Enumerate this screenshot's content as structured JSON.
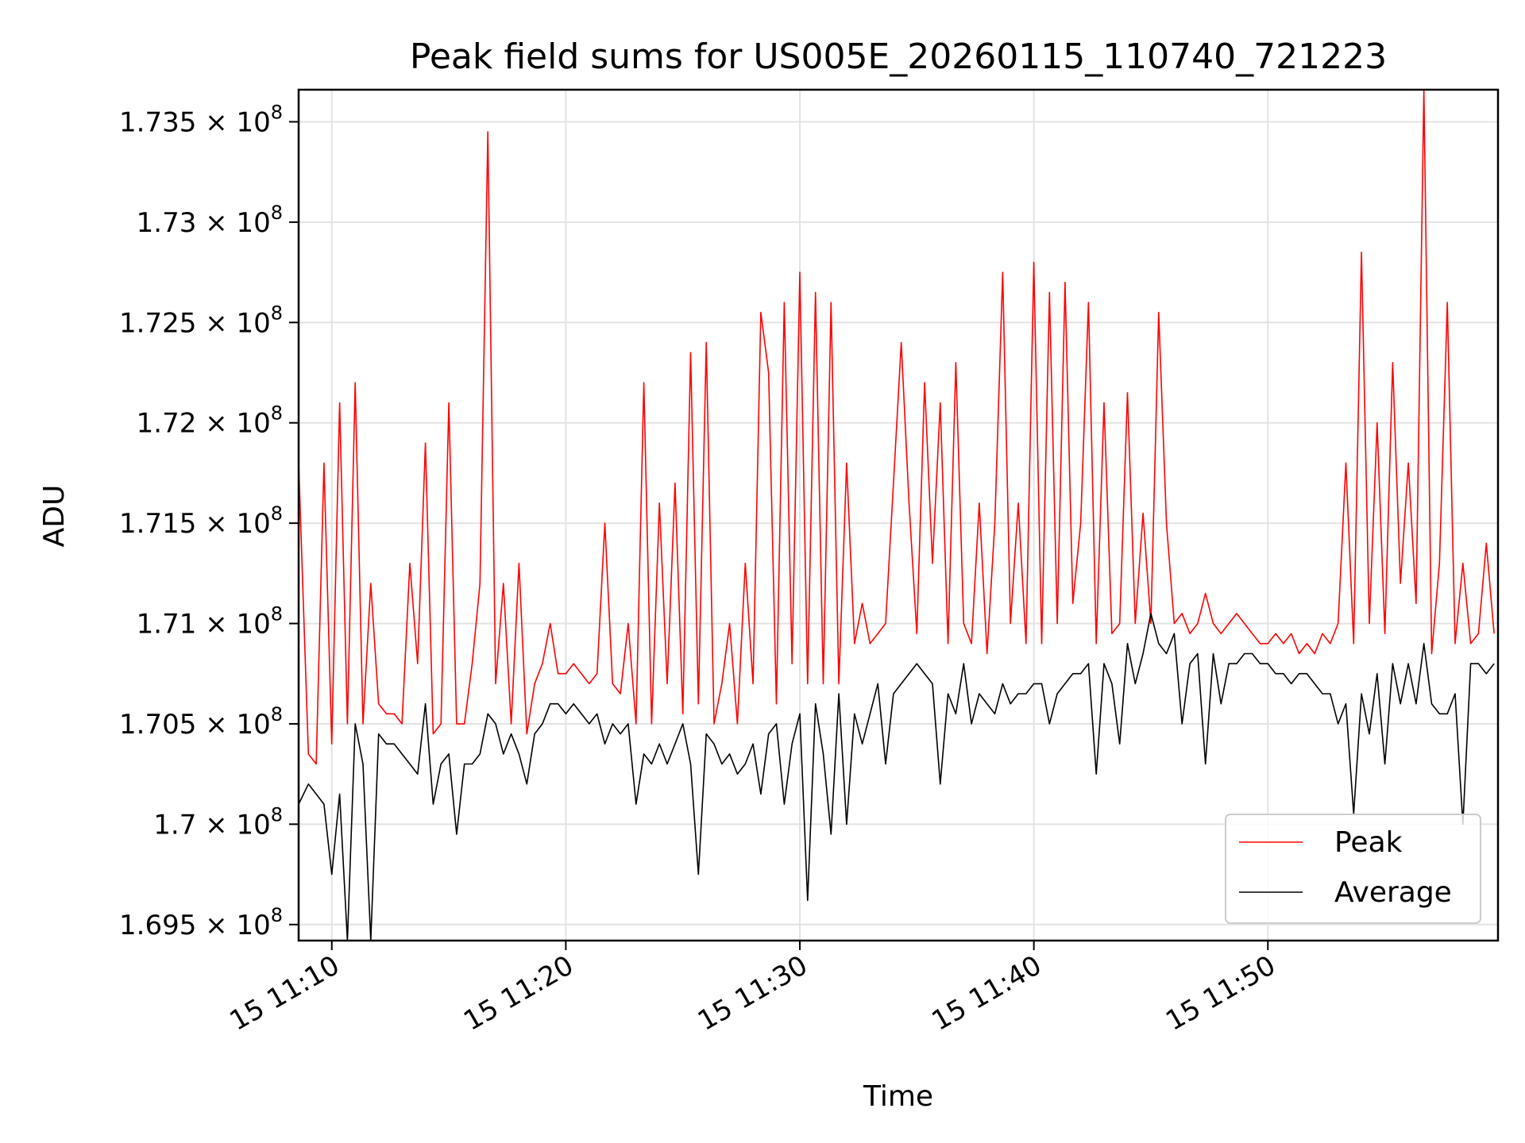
{
  "chart_data": {
    "type": "line",
    "title": "Peak field sums for US005E_20260115_110740_721223",
    "xlabel": "Time",
    "ylabel": "ADU",
    "xlim": [
      "2026-01-15 11:08:35",
      "2026-01-15 11:59:50"
    ],
    "ylim": [
      169420000,
      173660000
    ],
    "x_ticks": [
      {
        "value": "2026-01-15 11:10:00",
        "label": "15 11:10"
      },
      {
        "value": "2026-01-15 11:20:00",
        "label": "15 11:20"
      },
      {
        "value": "2026-01-15 11:30:00",
        "label": "15 11:30"
      },
      {
        "value": "2026-01-15 11:40:00",
        "label": "15 11:40"
      },
      {
        "value": "2026-01-15 11:50:00",
        "label": "15 11:50"
      }
    ],
    "y_ticks": [
      {
        "value": 169500000,
        "mantissa": "1.695",
        "suffix": "× 10",
        "exp": "8"
      },
      {
        "value": 170000000,
        "mantissa": "1.7",
        "suffix": "× 10",
        "exp": "8"
      },
      {
        "value": 170500000,
        "mantissa": "1.705",
        "suffix": "× 10",
        "exp": "8"
      },
      {
        "value": 171000000,
        "mantissa": "1.71",
        "suffix": "× 10",
        "exp": "8"
      },
      {
        "value": 171500000,
        "mantissa": "1.715",
        "suffix": "× 10",
        "exp": "8"
      },
      {
        "value": 172000000,
        "mantissa": "1.72",
        "suffix": "× 10",
        "exp": "8"
      },
      {
        "value": 172500000,
        "mantissa": "1.725",
        "suffix": "× 10",
        "exp": "8"
      },
      {
        "value": 173000000,
        "mantissa": "1.73",
        "suffix": "× 10",
        "exp": "8"
      },
      {
        "value": 173500000,
        "mantissa": "1.735",
        "suffix": "× 10",
        "exp": "8"
      }
    ],
    "grid": true,
    "legend_position": "lower-right",
    "x": [
      "2026-01-15 11:08:35",
      "2026-01-15 11:09:00",
      "2026-01-15 11:09:20",
      "2026-01-15 11:09:40",
      "2026-01-15 11:10:00",
      "2026-01-15 11:10:20",
      "2026-01-15 11:10:40",
      "2026-01-15 11:11:00",
      "2026-01-15 11:11:20",
      "2026-01-15 11:11:40",
      "2026-01-15 11:12:00",
      "2026-01-15 11:12:20",
      "2026-01-15 11:12:40",
      "2026-01-15 11:13:00",
      "2026-01-15 11:13:20",
      "2026-01-15 11:13:40",
      "2026-01-15 11:14:00",
      "2026-01-15 11:14:20",
      "2026-01-15 11:14:40",
      "2026-01-15 11:15:00",
      "2026-01-15 11:15:20",
      "2026-01-15 11:15:40",
      "2026-01-15 11:16:00",
      "2026-01-15 11:16:20",
      "2026-01-15 11:16:40",
      "2026-01-15 11:17:00",
      "2026-01-15 11:17:20",
      "2026-01-15 11:17:40",
      "2026-01-15 11:18:00",
      "2026-01-15 11:18:20",
      "2026-01-15 11:18:40",
      "2026-01-15 11:19:00",
      "2026-01-15 11:19:20",
      "2026-01-15 11:19:40",
      "2026-01-15 11:20:00",
      "2026-01-15 11:20:20",
      "2026-01-15 11:20:40",
      "2026-01-15 11:21:00",
      "2026-01-15 11:21:20",
      "2026-01-15 11:21:40",
      "2026-01-15 11:22:00",
      "2026-01-15 11:22:20",
      "2026-01-15 11:22:40",
      "2026-01-15 11:23:00",
      "2026-01-15 11:23:20",
      "2026-01-15 11:23:40",
      "2026-01-15 11:24:00",
      "2026-01-15 11:24:20",
      "2026-01-15 11:24:40",
      "2026-01-15 11:25:00",
      "2026-01-15 11:25:20",
      "2026-01-15 11:25:40",
      "2026-01-15 11:26:00",
      "2026-01-15 11:26:20",
      "2026-01-15 11:26:40",
      "2026-01-15 11:27:00",
      "2026-01-15 11:27:20",
      "2026-01-15 11:27:40",
      "2026-01-15 11:28:00",
      "2026-01-15 11:28:20",
      "2026-01-15 11:28:40",
      "2026-01-15 11:29:00",
      "2026-01-15 11:29:20",
      "2026-01-15 11:29:40",
      "2026-01-15 11:30:00",
      "2026-01-15 11:30:20",
      "2026-01-15 11:30:40",
      "2026-01-15 11:31:00",
      "2026-01-15 11:31:20",
      "2026-01-15 11:31:40",
      "2026-01-15 11:32:00",
      "2026-01-15 11:32:20",
      "2026-01-15 11:32:40",
      "2026-01-15 11:33:00",
      "2026-01-15 11:33:20",
      "2026-01-15 11:33:40",
      "2026-01-15 11:34:00",
      "2026-01-15 11:34:20",
      "2026-01-15 11:34:40",
      "2026-01-15 11:35:00",
      "2026-01-15 11:35:20",
      "2026-01-15 11:35:40",
      "2026-01-15 11:36:00",
      "2026-01-15 11:36:20",
      "2026-01-15 11:36:40",
      "2026-01-15 11:37:00",
      "2026-01-15 11:37:20",
      "2026-01-15 11:37:40",
      "2026-01-15 11:38:00",
      "2026-01-15 11:38:20",
      "2026-01-15 11:38:40",
      "2026-01-15 11:39:00",
      "2026-01-15 11:39:20",
      "2026-01-15 11:39:40",
      "2026-01-15 11:40:00",
      "2026-01-15 11:40:20",
      "2026-01-15 11:40:40",
      "2026-01-15 11:41:00",
      "2026-01-15 11:41:20",
      "2026-01-15 11:41:40",
      "2026-01-15 11:42:00",
      "2026-01-15 11:42:20",
      "2026-01-15 11:42:40",
      "2026-01-15 11:43:00",
      "2026-01-15 11:43:20",
      "2026-01-15 11:43:40",
      "2026-01-15 11:44:00",
      "2026-01-15 11:44:20",
      "2026-01-15 11:44:40",
      "2026-01-15 11:45:00",
      "2026-01-15 11:45:20",
      "2026-01-15 11:45:40",
      "2026-01-15 11:46:00",
      "2026-01-15 11:46:20",
      "2026-01-15 11:46:40",
      "2026-01-15 11:47:00",
      "2026-01-15 11:47:20",
      "2026-01-15 11:47:40",
      "2026-01-15 11:48:00",
      "2026-01-15 11:48:20",
      "2026-01-15 11:48:40",
      "2026-01-15 11:49:00",
      "2026-01-15 11:49:20",
      "2026-01-15 11:49:40",
      "2026-01-15 11:50:00",
      "2026-01-15 11:50:20",
      "2026-01-15 11:50:40",
      "2026-01-15 11:51:00",
      "2026-01-15 11:51:20",
      "2026-01-15 11:51:40",
      "2026-01-15 11:52:00",
      "2026-01-15 11:52:20",
      "2026-01-15 11:52:40",
      "2026-01-15 11:53:00",
      "2026-01-15 11:53:20",
      "2026-01-15 11:53:40",
      "2026-01-15 11:54:00",
      "2026-01-15 11:54:20",
      "2026-01-15 11:54:40",
      "2026-01-15 11:55:00",
      "2026-01-15 11:55:20",
      "2026-01-15 11:55:40",
      "2026-01-15 11:56:00",
      "2026-01-15 11:56:20",
      "2026-01-15 11:56:40",
      "2026-01-15 11:57:00",
      "2026-01-15 11:57:20",
      "2026-01-15 11:57:40",
      "2026-01-15 11:58:00",
      "2026-01-15 11:58:20",
      "2026-01-15 11:58:40",
      "2026-01-15 11:59:00",
      "2026-01-15 11:59:20",
      "2026-01-15 11:59:40"
    ],
    "series": [
      {
        "name": "Peak",
        "color": "#ff0000",
        "values": [
          171800000,
          170350000,
          170300000,
          171800000,
          170400000,
          172100000,
          170500000,
          172200000,
          170500000,
          171200000,
          170600000,
          170550000,
          170550000,
          170500000,
          171300000,
          170800000,
          171900000,
          170450000,
          170500000,
          172100000,
          170500000,
          170500000,
          170800000,
          171200000,
          173450000,
          170700000,
          171200000,
          170500000,
          171300000,
          170450000,
          170700000,
          170800000,
          171000000,
          170750000,
          170750000,
          170800000,
          170750000,
          170700000,
          170750000,
          171500000,
          170700000,
          170650000,
          171000000,
          170500000,
          172200000,
          170500000,
          171600000,
          170700000,
          171700000,
          170550000,
          172350000,
          170600000,
          172400000,
          170500000,
          170700000,
          171000000,
          170500000,
          171300000,
          170700000,
          172550000,
          172250000,
          170600000,
          172600000,
          170800000,
          172750000,
          170700000,
          172650000,
          170700000,
          172600000,
          170700000,
          171800000,
          170900000,
          171100000,
          170900000,
          170950000,
          171000000,
          171700000,
          172400000,
          171600000,
          170950000,
          172200000,
          171300000,
          172100000,
          170900000,
          172300000,
          171000000,
          170900000,
          171600000,
          170850000,
          171500000,
          172750000,
          171000000,
          171600000,
          170900000,
          172800000,
          170900000,
          172650000,
          171000000,
          172700000,
          171100000,
          171500000,
          172600000,
          170900000,
          172100000,
          170950000,
          171000000,
          172150000,
          171000000,
          171550000,
          171000000,
          172550000,
          171500000,
          171000000,
          171050000,
          170950000,
          171000000,
          171150000,
          171000000,
          170950000,
          171000000,
          171050000,
          171000000,
          170950000,
          170900000,
          170900000,
          170950000,
          170900000,
          170950000,
          170850000,
          170900000,
          170850000,
          170950000,
          170900000,
          171000000,
          171800000,
          170900000,
          172850000,
          171000000,
          172000000,
          170950000,
          172300000,
          171200000,
          171800000,
          171100000,
          173700000,
          170850000,
          171300000,
          172600000,
          170900000,
          171300000,
          170900000,
          170950000,
          171400000,
          170950000
        ]
      },
      {
        "name": "Average",
        "color": "#000000",
        "values": [
          170100000,
          170200000,
          170150000,
          170100000,
          169750000,
          170150000,
          169330000,
          170500000,
          170300000,
          169200000,
          170450000,
          170400000,
          170400000,
          170350000,
          170300000,
          170250000,
          170600000,
          170100000,
          170300000,
          170350000,
          169950000,
          170300000,
          170300000,
          170350000,
          170550000,
          170500000,
          170350000,
          170450000,
          170350000,
          170200000,
          170450000,
          170500000,
          170600000,
          170600000,
          170550000,
          170600000,
          170550000,
          170500000,
          170550000,
          170400000,
          170500000,
          170450000,
          170500000,
          170100000,
          170350000,
          170300000,
          170400000,
          170300000,
          170400000,
          170500000,
          170300000,
          169750000,
          170450000,
          170400000,
          170300000,
          170350000,
          170250000,
          170300000,
          170400000,
          170150000,
          170450000,
          170500000,
          170100000,
          170400000,
          170550000,
          169620000,
          170600000,
          170350000,
          169950000,
          170650000,
          170000000,
          170550000,
          170400000,
          170550000,
          170700000,
          170300000,
          170650000,
          170700000,
          170750000,
          170800000,
          170750000,
          170700000,
          170200000,
          170650000,
          170550000,
          170800000,
          170500000,
          170650000,
          170600000,
          170550000,
          170700000,
          170600000,
          170650000,
          170650000,
          170700000,
          170700000,
          170500000,
          170650000,
          170700000,
          170750000,
          170750000,
          170800000,
          170250000,
          170800000,
          170700000,
          170400000,
          170900000,
          170700000,
          170850000,
          171050000,
          170900000,
          170850000,
          170950000,
          170500000,
          170800000,
          170850000,
          170300000,
          170850000,
          170600000,
          170800000,
          170800000,
          170850000,
          170850000,
          170800000,
          170800000,
          170750000,
          170750000,
          170700000,
          170750000,
          170750000,
          170700000,
          170650000,
          170650000,
          170500000,
          170600000,
          170050000,
          170650000,
          170450000,
          170750000,
          170300000,
          170800000,
          170600000,
          170800000,
          170600000,
          170900000,
          170600000,
          170550000,
          170550000,
          170650000,
          170000000,
          170800000,
          170800000,
          170750000,
          170800000
        ]
      }
    ]
  }
}
